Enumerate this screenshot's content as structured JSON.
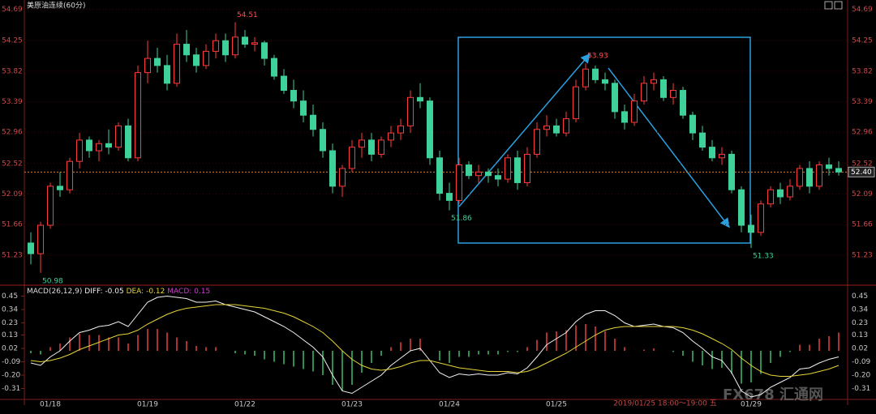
{
  "header": "美原油连续(60分)",
  "cursor_time": "2019/01/25 18:00～19:00 五",
  "watermark": "FX678 汇通网",
  "chart_data": [
    {
      "type": "candlestick",
      "categories": [
        null,
        null,
        "01/18",
        null,
        null,
        null,
        null,
        null,
        null,
        null,
        null,
        null,
        "01/19",
        null,
        null,
        null,
        null,
        null,
        null,
        null,
        null,
        null,
        "01/22",
        null,
        null,
        null,
        null,
        null,
        null,
        null,
        null,
        null,
        null,
        "01/23",
        null,
        null,
        null,
        null,
        null,
        null,
        null,
        null,
        null,
        "01/24",
        null,
        null,
        null,
        null,
        null,
        null,
        null,
        null,
        null,
        null,
        "01/25",
        null,
        null,
        null,
        null,
        null,
        null,
        null,
        null,
        null,
        null,
        null,
        null,
        null,
        null,
        null,
        null,
        null,
        null,
        null,
        "01/29",
        null,
        null,
        null,
        null,
        null,
        null,
        null,
        null,
        null
      ],
      "open": [
        51.4,
        51.25,
        51.65,
        52.2,
        52.15,
        52.55,
        52.85,
        52.7,
        52.8,
        52.75,
        53.05,
        52.6,
        53.8,
        54.0,
        53.9,
        53.65,
        54.2,
        54.05,
        53.9,
        54.1,
        54.25,
        54.05,
        54.3,
        54.2,
        54.22,
        54.0,
        53.75,
        53.55,
        53.4,
        53.2,
        53.0,
        52.7,
        52.2,
        52.45,
        52.75,
        52.85,
        52.65,
        52.85,
        52.95,
        53.05,
        53.45,
        53.4,
        52.6,
        52.1,
        52.0,
        52.5,
        52.35,
        52.4,
        52.35,
        52.3,
        52.6,
        52.25,
        52.65,
        53.0,
        53.05,
        52.95,
        53.15,
        53.6,
        53.85,
        53.7,
        53.65,
        53.25,
        53.1,
        53.4,
        53.65,
        53.7,
        53.45,
        53.55,
        53.2,
        52.95,
        52.75,
        52.6,
        52.65,
        52.15,
        51.65,
        51.55,
        51.95,
        52.15,
        52.05,
        52.2,
        52.45,
        52.2,
        52.5,
        52.45
      ],
      "high": [
        51.55,
        51.7,
        52.25,
        52.4,
        52.6,
        52.95,
        52.9,
        52.85,
        53.0,
        53.1,
        53.15,
        53.9,
        54.25,
        54.15,
        54.05,
        54.35,
        54.4,
        54.15,
        54.2,
        54.35,
        54.35,
        54.51,
        54.4,
        54.3,
        54.25,
        54.05,
        53.85,
        53.7,
        53.55,
        53.35,
        53.1,
        52.8,
        52.5,
        52.85,
        52.95,
        52.95,
        52.9,
        53.05,
        53.15,
        53.55,
        53.65,
        53.45,
        52.7,
        52.25,
        52.6,
        52.55,
        52.5,
        52.45,
        52.45,
        52.65,
        52.7,
        52.75,
        53.1,
        53.2,
        53.15,
        53.25,
        53.7,
        53.93,
        53.9,
        53.8,
        53.7,
        53.35,
        53.5,
        53.75,
        53.8,
        53.75,
        53.65,
        53.6,
        53.25,
        53.05,
        52.85,
        52.75,
        52.7,
        52.2,
        51.8,
        52.0,
        52.2,
        52.25,
        52.3,
        52.5,
        52.55,
        52.55,
        52.6,
        52.55
      ],
      "low": [
        51.1,
        50.98,
        51.6,
        52.05,
        52.1,
        52.45,
        52.6,
        52.55,
        52.65,
        52.7,
        52.55,
        52.55,
        53.65,
        53.8,
        53.55,
        53.6,
        53.95,
        53.8,
        53.85,
        54.0,
        53.95,
        54.0,
        54.15,
        54.1,
        53.9,
        53.7,
        53.5,
        53.3,
        53.1,
        52.9,
        52.6,
        52.1,
        52.05,
        52.4,
        52.6,
        52.55,
        52.6,
        52.75,
        52.85,
        52.95,
        53.3,
        52.5,
        52.0,
        51.86,
        51.95,
        52.3,
        52.25,
        52.25,
        52.2,
        52.25,
        52.15,
        52.2,
        52.6,
        52.9,
        52.9,
        52.9,
        53.1,
        53.55,
        53.65,
        53.55,
        53.15,
        53.0,
        53.05,
        53.35,
        53.55,
        53.4,
        53.35,
        53.15,
        52.85,
        52.7,
        52.55,
        52.5,
        52.1,
        51.55,
        51.33,
        51.5,
        51.9,
        51.95,
        52.0,
        52.15,
        52.1,
        52.15,
        52.35,
        52.35
      ],
      "close": [
        51.25,
        51.65,
        52.2,
        52.15,
        52.55,
        52.85,
        52.7,
        52.8,
        52.75,
        53.05,
        52.6,
        53.8,
        54.0,
        53.9,
        53.65,
        54.2,
        54.05,
        53.9,
        54.1,
        54.25,
        54.05,
        54.3,
        54.2,
        54.22,
        54.0,
        53.75,
        53.55,
        53.4,
        53.2,
        53.0,
        52.7,
        52.2,
        52.45,
        52.75,
        52.85,
        52.65,
        52.85,
        52.95,
        53.05,
        53.45,
        53.4,
        52.6,
        52.1,
        52.0,
        52.5,
        52.35,
        52.4,
        52.35,
        52.3,
        52.6,
        52.25,
        52.65,
        53.0,
        53.05,
        52.95,
        53.15,
        53.6,
        53.85,
        53.7,
        53.65,
        53.25,
        53.1,
        53.4,
        53.65,
        53.7,
        53.45,
        53.55,
        53.2,
        52.95,
        52.75,
        52.6,
        52.65,
        52.15,
        51.65,
        51.55,
        51.95,
        52.15,
        52.05,
        52.2,
        52.45,
        52.2,
        52.5,
        52.45,
        52.4
      ],
      "up_color": "#ff3b3b",
      "down_color": "#3fd19a",
      "ylim": [
        51.0,
        54.8
      ],
      "yticks": [
        54.69,
        54.25,
        53.82,
        53.39,
        52.96,
        52.52,
        52.09,
        51.66,
        51.23
      ],
      "last_price": {
        "value": 52.4,
        "label": "52.40"
      },
      "extreme_labels": [
        54.51,
        50.98,
        51.86,
        53.93,
        51.33
      ]
    },
    {
      "type": "macd",
      "title": "MACD(26,12,9)",
      "ylim": [
        -0.39,
        0.52
      ],
      "yticks": [
        0.45,
        0.34,
        0.23,
        0.13,
        0.02,
        -0.09,
        {
          "value": -0.2,
          "label": "-0.20"
        },
        -0.31
      ],
      "series": [
        {
          "name": "DIFF:",
          "readout": -0.05,
          "color": "#f2f2f2",
          "values": [
            -0.1,
            -0.12,
            -0.05,
            0.0,
            0.08,
            0.15,
            0.17,
            0.2,
            0.21,
            0.24,
            0.2,
            0.3,
            0.4,
            0.44,
            0.45,
            0.44,
            0.43,
            0.4,
            0.4,
            0.41,
            0.38,
            0.36,
            0.34,
            0.32,
            0.28,
            0.24,
            0.2,
            0.15,
            0.09,
            0.03,
            -0.05,
            -0.2,
            -0.33,
            -0.35,
            -0.3,
            -0.25,
            -0.2,
            -0.12,
            -0.06,
            0.0,
            0.02,
            -0.08,
            -0.18,
            -0.22,
            -0.19,
            -0.2,
            -0.19,
            -0.2,
            -0.2,
            -0.18,
            -0.19,
            -0.14,
            -0.05,
            0.05,
            0.1,
            0.15,
            0.24,
            0.3,
            0.33,
            0.33,
            0.29,
            0.23,
            0.2,
            0.21,
            0.22,
            0.2,
            0.19,
            0.15,
            0.08,
            0.02,
            -0.05,
            -0.08,
            -0.18,
            -0.33,
            -0.38,
            -0.36,
            -0.3,
            -0.26,
            -0.22,
            -0.15,
            -0.14,
            -0.1,
            -0.07,
            -0.05
          ]
        },
        {
          "name": "DEA:",
          "readout": -0.12,
          "color": "#e6d43a",
          "values": [
            -0.08,
            -0.09,
            -0.08,
            -0.06,
            -0.03,
            0.01,
            0.04,
            0.07,
            0.1,
            0.13,
            0.14,
            0.17,
            0.22,
            0.26,
            0.3,
            0.33,
            0.35,
            0.36,
            0.37,
            0.38,
            0.38,
            0.38,
            0.37,
            0.36,
            0.35,
            0.33,
            0.31,
            0.28,
            0.24,
            0.2,
            0.15,
            0.08,
            0.0,
            -0.07,
            -0.12,
            -0.15,
            -0.16,
            -0.15,
            -0.13,
            -0.1,
            -0.08,
            -0.08,
            -0.1,
            -0.12,
            -0.14,
            -0.15,
            -0.16,
            -0.17,
            -0.17,
            -0.17,
            -0.18,
            -0.17,
            -0.14,
            -0.1,
            -0.06,
            -0.02,
            0.03,
            0.08,
            0.13,
            0.17,
            0.19,
            0.2,
            0.2,
            0.2,
            0.2,
            0.2,
            0.2,
            0.19,
            0.17,
            0.14,
            0.1,
            0.06,
            0.01,
            -0.06,
            -0.12,
            -0.17,
            -0.2,
            -0.21,
            -0.21,
            -0.2,
            -0.19,
            -0.17,
            -0.15,
            -0.12
          ]
        },
        {
          "name": "MACD:",
          "readout": 0.15,
          "color": "#d23cd2",
          "up_color": "#e8413f",
          "down_color": "#3fbf6a",
          "values": [
            -0.02,
            -0.03,
            0.03,
            0.06,
            0.11,
            0.14,
            0.13,
            0.13,
            0.11,
            0.11,
            0.06,
            0.13,
            0.18,
            0.18,
            0.15,
            0.11,
            0.08,
            0.04,
            0.03,
            0.03,
            0.0,
            -0.02,
            -0.03,
            -0.04,
            -0.07,
            -0.09,
            -0.11,
            -0.13,
            -0.15,
            -0.17,
            -0.2,
            -0.28,
            -0.33,
            -0.28,
            -0.18,
            -0.1,
            -0.04,
            0.03,
            0.07,
            0.1,
            0.1,
            0.0,
            -0.08,
            -0.1,
            -0.05,
            -0.05,
            -0.03,
            -0.03,
            -0.03,
            -0.01,
            -0.01,
            0.03,
            0.09,
            0.15,
            0.16,
            0.17,
            0.21,
            0.22,
            0.2,
            0.16,
            0.1,
            0.03,
            0.0,
            0.01,
            0.02,
            0.0,
            -0.01,
            -0.04,
            -0.09,
            -0.12,
            -0.15,
            -0.14,
            -0.19,
            -0.27,
            -0.26,
            -0.19,
            -0.1,
            -0.05,
            -0.01,
            0.05,
            0.05,
            0.1,
            0.12,
            0.15
          ]
        }
      ]
    }
  ]
}
